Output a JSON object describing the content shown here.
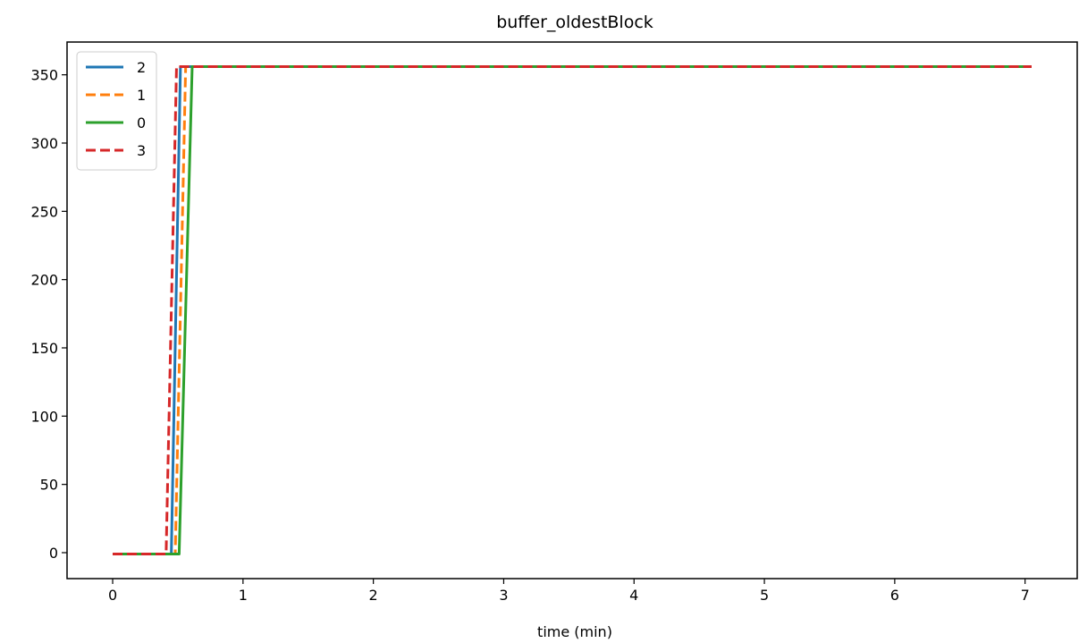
{
  "chart_data": {
    "type": "line",
    "title": "buffer_oldestBlock",
    "xlabel": "time (min)",
    "ylabel": "",
    "xlim": [
      -0.35,
      7.4
    ],
    "ylim": [
      -19,
      374
    ],
    "xticks": [
      0,
      1,
      2,
      3,
      4,
      5,
      6,
      7
    ],
    "yticks": [
      0,
      50,
      100,
      150,
      200,
      250,
      300,
      350
    ],
    "grid": false,
    "legend_position": "top-left",
    "series": [
      {
        "name": "2",
        "color": "#1f77b4",
        "dash": "solid",
        "points": [
          [
            0,
            -1
          ],
          [
            0.45,
            -1
          ],
          [
            0.52,
            356
          ],
          [
            7.05,
            356
          ]
        ]
      },
      {
        "name": "1",
        "color": "#ff7f0e",
        "dash": "dashed",
        "points": [
          [
            0,
            -1
          ],
          [
            0.48,
            -1
          ],
          [
            0.56,
            356
          ],
          [
            7.05,
            356
          ]
        ]
      },
      {
        "name": "0",
        "color": "#2ca02c",
        "dash": "solid",
        "points": [
          [
            0,
            -1
          ],
          [
            0.51,
            -1
          ],
          [
            0.61,
            356
          ],
          [
            7.05,
            356
          ]
        ]
      },
      {
        "name": "3",
        "color": "#d62728",
        "dash": "dashed",
        "points": [
          [
            0,
            -1
          ],
          [
            0.41,
            -1
          ],
          [
            0.49,
            356
          ],
          [
            7.05,
            356
          ]
        ]
      }
    ]
  }
}
